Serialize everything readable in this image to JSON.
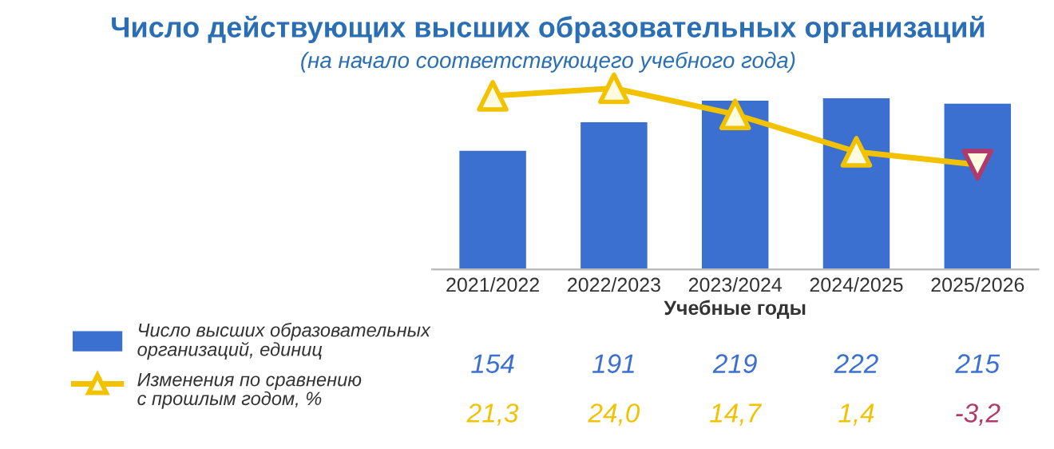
{
  "chart_data": {
    "type": "bar",
    "title": "Число действующих высших образовательных организаций",
    "subtitle": "(на начало соответствующего учебного года)",
    "xlabel": "Учебные годы",
    "categories": [
      "2021/2022",
      "2022/2023",
      "2023/2024",
      "2024/2025",
      "2025/2026"
    ],
    "series": [
      {
        "name": "Число высших образовательных\nорганизаций, единиц",
        "color": "#3b6fd0",
        "values": [
          154,
          191,
          219,
          222,
          215
        ],
        "value_labels": [
          "154",
          "191",
          "219",
          "222",
          "215"
        ]
      },
      {
        "name": "Изменения по сравнению\nс прошлым годом, %",
        "type": "line",
        "axis": "y2",
        "color": "#f2c200",
        "colors": [
          "#f2c200",
          "#f2c200",
          "#f2c200",
          "#f2c200",
          "#b03a6a"
        ],
        "values": [
          21.3,
          24.0,
          14.7,
          1.4,
          -3.2
        ],
        "value_labels": [
          "21,3",
          "24,0",
          "14,7",
          "1,4",
          "-3,2"
        ]
      }
    ],
    "marker": "triangle",
    "tick_labels": "x",
    "legend": "bottom left"
  }
}
